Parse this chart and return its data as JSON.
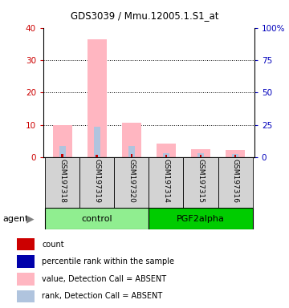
{
  "title": "GDS3039 / Mmu.12005.1.S1_at",
  "samples": [
    "GSM197318",
    "GSM197319",
    "GSM197320",
    "GSM197314",
    "GSM197315",
    "GSM197316"
  ],
  "groups": [
    "control",
    "control",
    "control",
    "PGF2alpha",
    "PGF2alpha",
    "PGF2alpha"
  ],
  "ylim_left": [
    0,
    40
  ],
  "ylim_right": [
    0,
    100
  ],
  "yticks_left": [
    0,
    10,
    20,
    30,
    40
  ],
  "yticks_right": [
    0,
    25,
    50,
    75,
    100
  ],
  "yticklabels_right": [
    "0",
    "25",
    "50",
    "75",
    "100%"
  ],
  "value_absent": [
    10.0,
    36.5,
    10.7,
    4.2,
    2.5,
    2.2
  ],
  "rank_absent_blue": [
    3.5,
    9.5,
    3.5,
    1.2,
    1.2,
    1.0
  ],
  "count_red": [
    1.0,
    0.8,
    1.0,
    0.8,
    0.8,
    0.8
  ],
  "color_value_absent": "#FFB6C1",
  "color_rank_absent": "#B0C4DE",
  "color_count": "#CC0000",
  "color_rank_present": "#0000AA",
  "tick_color_left": "#CC0000",
  "tick_color_right": "#0000BB",
  "grid_ticks": [
    10,
    20,
    30
  ],
  "ctrl_color": "#90EE90",
  "pgf_color": "#00CC00",
  "legend_items": [
    {
      "color": "#CC0000",
      "label": "count"
    },
    {
      "color": "#0000AA",
      "label": "percentile rank within the sample"
    },
    {
      "color": "#FFB6C1",
      "label": "value, Detection Call = ABSENT"
    },
    {
      "color": "#B0C4DE",
      "label": "rank, Detection Call = ABSENT"
    }
  ]
}
